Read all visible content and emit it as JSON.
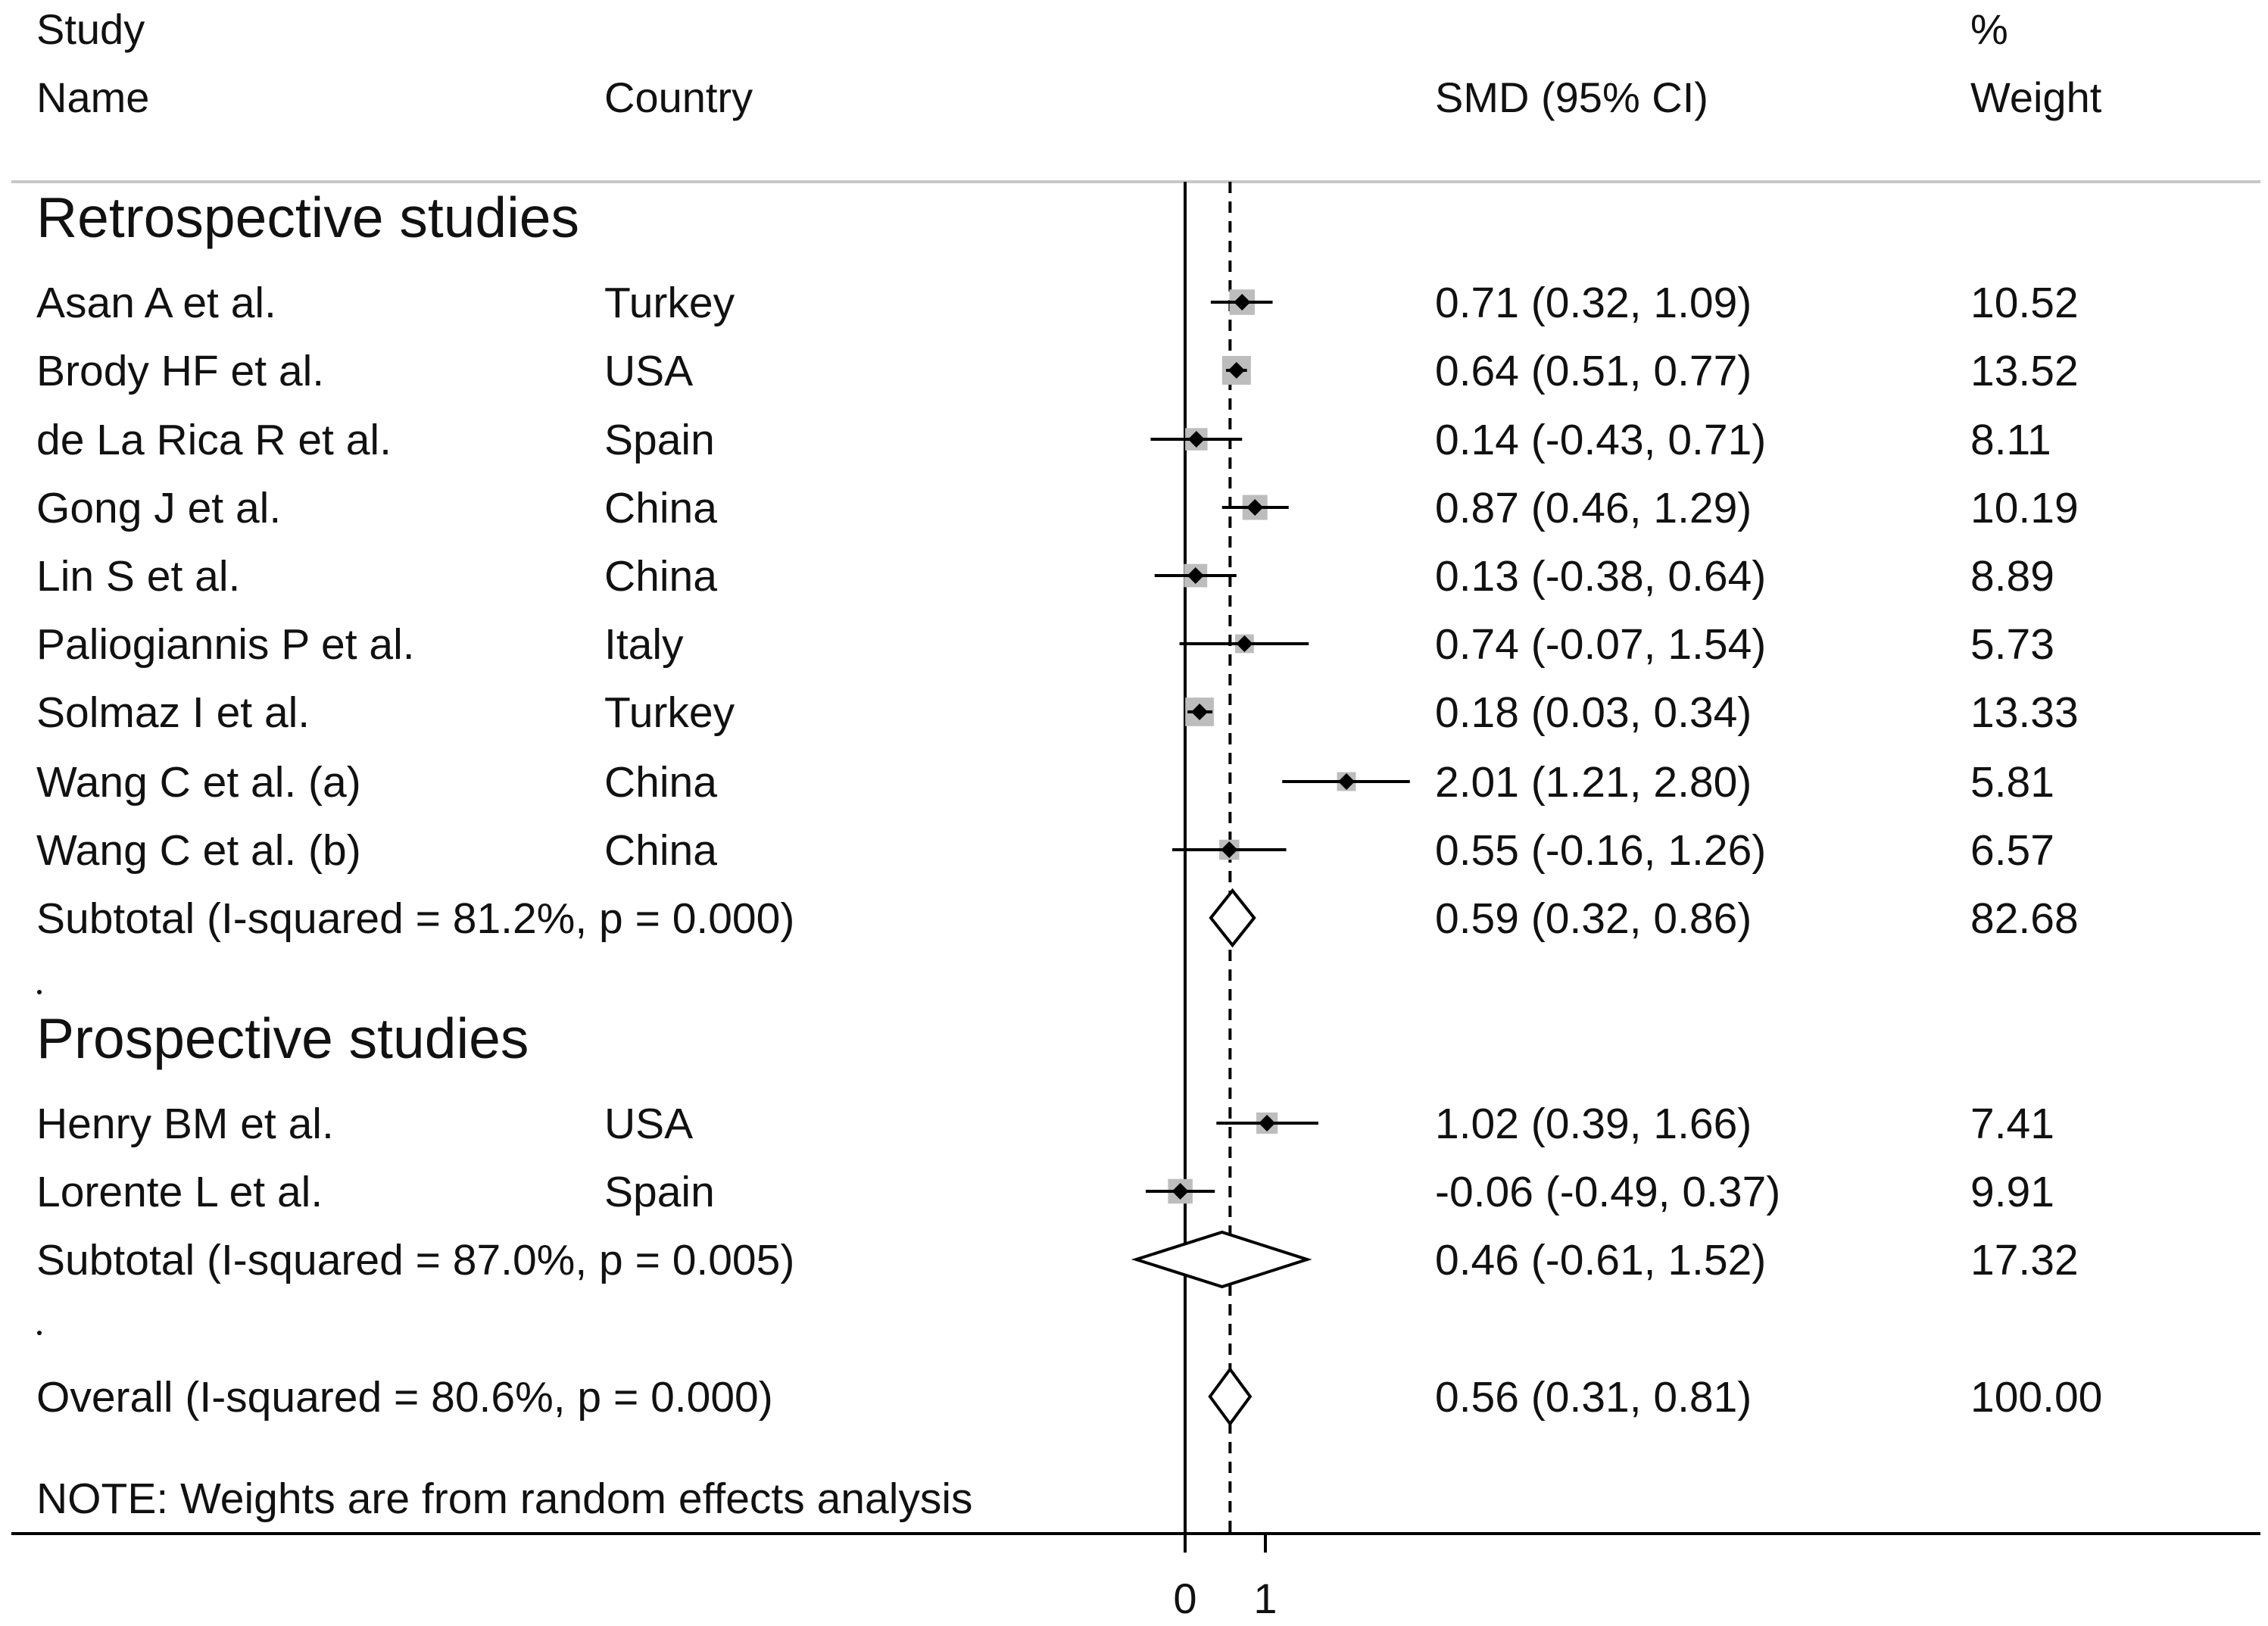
{
  "headers": {
    "study_line1": "Study",
    "study_line2": "Name",
    "country": "Country",
    "smd": "SMD (95% CI)",
    "weight_line1": "%",
    "weight_line2": "Weight"
  },
  "chart_data": {
    "type": "forest",
    "x_ticks": [
      "0",
      "1"
    ],
    "pooled_line_value": 0.56,
    "note": "NOTE: Weights are from random effects analysis",
    "groups": [
      {
        "title": "Retrospective studies",
        "studies": [
          {
            "name": "Asan A et al.",
            "country": "Turkey",
            "smd": 0.71,
            "lo": 0.32,
            "hi": 1.09,
            "ci_text": "0.71 (0.32, 1.09)",
            "weight": 10.52,
            "weight_text": "10.52"
          },
          {
            "name": "Brody HF et al.",
            "country": "USA",
            "smd": 0.64,
            "lo": 0.51,
            "hi": 0.77,
            "ci_text": "0.64 (0.51, 0.77)",
            "weight": 13.52,
            "weight_text": "13.52"
          },
          {
            "name": "de La Rica R et al.",
            "country": "Spain",
            "smd": 0.14,
            "lo": -0.43,
            "hi": 0.71,
            "ci_text": "0.14 (-0.43, 0.71)",
            "weight": 8.11,
            "weight_text": "8.11"
          },
          {
            "name": "Gong J et al.",
            "country": "China",
            "smd": 0.87,
            "lo": 0.46,
            "hi": 1.29,
            "ci_text": "0.87 (0.46, 1.29)",
            "weight": 10.19,
            "weight_text": "10.19"
          },
          {
            "name": "Lin S et al.",
            "country": "China",
            "smd": 0.13,
            "lo": -0.38,
            "hi": 0.64,
            "ci_text": "0.13 (-0.38, 0.64)",
            "weight": 8.89,
            "weight_text": "8.89"
          },
          {
            "name": "Paliogiannis P et al.",
            "country": "Italy",
            "smd": 0.74,
            "lo": -0.07,
            "hi": 1.54,
            "ci_text": "0.74 (-0.07, 1.54)",
            "weight": 5.73,
            "weight_text": "5.73"
          },
          {
            "name": "Solmaz I et al.",
            "country": "Turkey",
            "smd": 0.18,
            "lo": 0.03,
            "hi": 0.34,
            "ci_text": "0.18 (0.03, 0.34)",
            "weight": 13.33,
            "weight_text": "13.33"
          },
          {
            "name": "Wang C et al. (a)",
            "country": "China",
            "smd": 2.01,
            "lo": 1.21,
            "hi": 2.8,
            "ci_text": "2.01 (1.21, 2.80)",
            "weight": 5.81,
            "weight_text": "5.81"
          },
          {
            "name": "Wang C et al. (b)",
            "country": "China",
            "smd": 0.55,
            "lo": -0.16,
            "hi": 1.26,
            "ci_text": "0.55 (-0.16, 1.26)",
            "weight": 6.57,
            "weight_text": "6.57"
          }
        ],
        "subtotal": {
          "label": "Subtotal  (I-squared = 81.2%, p = 0.000)",
          "smd": 0.59,
          "lo": 0.32,
          "hi": 0.86,
          "ci_text": "0.59 (0.32, 0.86)",
          "weight_text": "82.68"
        }
      },
      {
        "title": "Prospective studies",
        "studies": [
          {
            "name": "Henry BM et al.",
            "country": "USA",
            "smd": 1.02,
            "lo": 0.39,
            "hi": 1.66,
            "ci_text": "1.02 (0.39, 1.66)",
            "weight": 7.41,
            "weight_text": "7.41"
          },
          {
            "name": "Lorente L et al.",
            "country": "Spain",
            "smd": -0.06,
            "lo": -0.49,
            "hi": 0.37,
            "ci_text": "-0.06 (-0.49, 0.37)",
            "weight": 9.91,
            "weight_text": "9.91"
          }
        ],
        "subtotal": {
          "label": "Subtotal  (I-squared = 87.0%, p = 0.005)",
          "smd": 0.46,
          "lo": -0.61,
          "hi": 1.52,
          "ci_text": "0.46 (-0.61, 1.52)",
          "weight_text": "17.32"
        }
      }
    ],
    "overall": {
      "label": "Overall  (I-squared = 80.6%, p = 0.000)",
      "smd": 0.56,
      "lo": 0.31,
      "hi": 0.81,
      "ci_text": "0.56 (0.31, 0.81)",
      "weight_text": "100.00"
    }
  }
}
